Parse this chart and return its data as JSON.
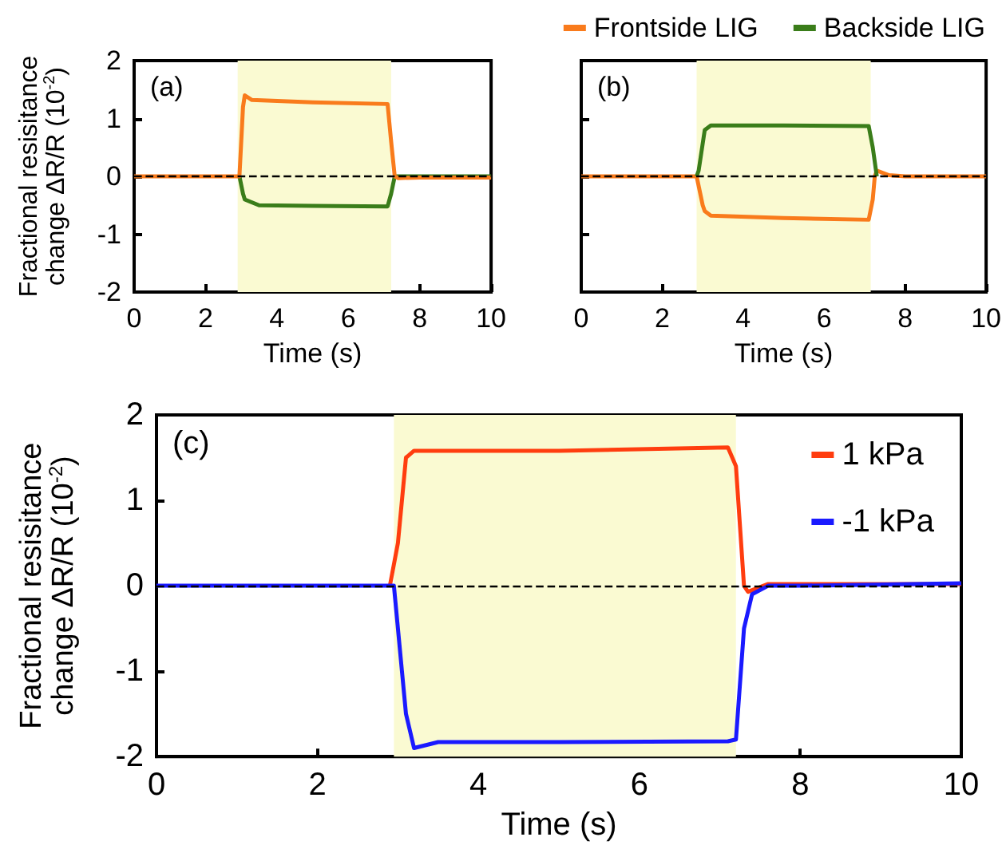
{
  "chart_data": [
    {
      "type": "line",
      "xlabel": "Time (s)",
      "ylabel": "Fractional resisitance\nchange ΔR/R (10$^{-2}$)",
      "annotations": [
        "(a)"
      ],
      "xlim": [
        0,
        10
      ],
      "xticks": [
        0,
        2,
        4,
        6,
        8,
        10
      ],
      "ylim": [
        -2,
        2
      ],
      "yticks": [
        -2,
        -1,
        0,
        1,
        2
      ],
      "grid": false,
      "bands": [
        {
          "axis": "x",
          "from": 2.9,
          "to": 7.2,
          "color": "#fafad2"
        }
      ],
      "ref_lines": [
        {
          "axis": "y",
          "value": 0,
          "line_style": "dashed",
          "color": "#000000"
        }
      ],
      "series": [
        {
          "color": "#3a7d1a",
          "x": [
            2.95,
            3.05,
            3.1,
            3.5,
            5,
            7.1,
            7.2,
            7.3,
            8,
            10
          ],
          "values": [
            0,
            -0.3,
            -0.4,
            -0.5,
            -0.51,
            -0.52,
            -0.3,
            0,
            0,
            0
          ]
        },
        {
          "color": "#f97b1c",
          "x": [
            0,
            1,
            2,
            2.95,
            3.05,
            3.1,
            3.3,
            5,
            7.1,
            7.2,
            7.3,
            7.4,
            8,
            10
          ],
          "values": [
            0,
            0,
            0,
            0,
            1.2,
            1.4,
            1.32,
            1.28,
            1.25,
            0.6,
            0,
            -0.03,
            -0.02,
            -0.02
          ]
        }
      ]
    },
    {
      "type": "line",
      "xlabel": "Time (s)",
      "annotations": [
        "(b)"
      ],
      "xlim": [
        0,
        10
      ],
      "xticks": [
        0,
        2,
        4,
        6,
        8,
        10
      ],
      "ylim": [
        -2,
        2
      ],
      "yticks": [
        -2,
        -1,
        0,
        1,
        2
      ],
      "grid": false,
      "tick_labels": "x",
      "legend": "top",
      "bands": [
        {
          "axis": "x",
          "from": 2.85,
          "to": 7.15,
          "color": "#fafad2"
        }
      ],
      "ref_lines": [
        {
          "axis": "y",
          "value": 0,
          "line_style": "dashed",
          "color": "#000000"
        }
      ],
      "series": [
        {
          "name": "Frontside LIG",
          "color": "#f97b1c",
          "x": [
            0,
            1,
            2,
            2.85,
            3,
            3.05,
            3.2,
            5,
            7.1,
            7.2,
            7.25,
            7.3,
            7.6,
            8,
            10
          ],
          "values": [
            0,
            0,
            0,
            0,
            -0.5,
            -0.6,
            -0.68,
            -0.72,
            -0.75,
            -0.4,
            0,
            0.1,
            0.02,
            0,
            0
          ]
        },
        {
          "name": "Backside LIG",
          "color": "#3a7d1a",
          "x": [
            2.85,
            2.9,
            3.05,
            3.2,
            5,
            7.1,
            7.2,
            7.3
          ],
          "values": [
            0,
            0.1,
            0.8,
            0.88,
            0.88,
            0.87,
            0.5,
            0
          ]
        }
      ]
    },
    {
      "type": "line",
      "xlabel": "Time (s)",
      "ylabel": "Fractional resisitance\nchange ΔR/R (10$^{-2}$)",
      "annotations": [
        "(c)"
      ],
      "xlim": [
        0,
        10
      ],
      "xticks": [
        0,
        2,
        4,
        6,
        8,
        10
      ],
      "ylim": [
        -2,
        2
      ],
      "yticks": [
        -2,
        -1,
        0,
        1,
        2
      ],
      "grid": false,
      "legend": "top right",
      "bands": [
        {
          "axis": "x",
          "from": 2.95,
          "to": 7.2,
          "color": "#fafad2"
        }
      ],
      "ref_lines": [
        {
          "axis": "y",
          "value": 0,
          "line_style": "dashed",
          "color": "#000000"
        }
      ],
      "series": [
        {
          "name": "1 kPa",
          "color": "#ff3d0f",
          "x": [
            2.9,
            3,
            3.05,
            3.1,
            3.2,
            5,
            7.1,
            7.2,
            7.3,
            7.35,
            7.6,
            8,
            10
          ],
          "values": [
            0,
            0.5,
            1.0,
            1.5,
            1.58,
            1.58,
            1.62,
            1.4,
            0,
            -0.07,
            0.02,
            0.02,
            0.02
          ]
        },
        {
          "name": "-1 kPa",
          "color": "#1a1aff",
          "x": [
            0,
            1,
            2,
            2.95,
            3.05,
            3.1,
            3.2,
            3.5,
            5,
            7.1,
            7.2,
            7.3,
            7.4,
            7.6,
            8,
            10
          ],
          "values": [
            0,
            0,
            0,
            0,
            -1.0,
            -1.5,
            -1.9,
            -1.83,
            -1.83,
            -1.82,
            -1.8,
            -0.5,
            -0.1,
            0,
            0,
            0.03
          ]
        }
      ]
    }
  ]
}
